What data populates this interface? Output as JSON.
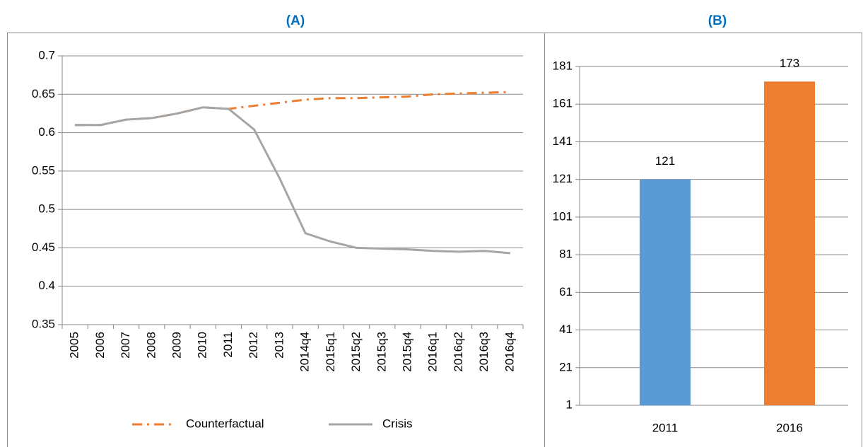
{
  "chart_data": [
    {
      "type": "line",
      "title": "(A)",
      "categories": [
        "2005",
        "2006",
        "2007",
        "2008",
        "2009",
        "2010",
        "2011",
        "2012",
        "2013",
        "2014q4",
        "2015q1",
        "2015q2",
        "2015q3",
        "2015q4",
        "2016q1",
        "2016q2",
        "2016q3",
        "2016q4"
      ],
      "series": [
        {
          "name": "Counterfactual",
          "color": "#ed7d31",
          "style": "dash-dot",
          "values": [
            0.61,
            0.61,
            0.617,
            0.619,
            0.625,
            0.633,
            0.631,
            0.635,
            0.639,
            0.643,
            0.645,
            0.645,
            0.646,
            0.647,
            0.65,
            0.651,
            0.652,
            0.653
          ]
        },
        {
          "name": "Crisis",
          "color": "#a5a5a5",
          "style": "solid",
          "values": [
            0.61,
            0.61,
            0.617,
            0.619,
            0.625,
            0.633,
            0.631,
            0.604,
            0.54,
            0.469,
            0.458,
            0.45,
            0.449,
            0.448,
            0.446,
            0.445,
            0.446,
            0.443
          ]
        }
      ],
      "ylim": [
        0.35,
        0.7
      ],
      "yticks": [
        0.35,
        0.4,
        0.45,
        0.5,
        0.55,
        0.6,
        0.65,
        0.7
      ],
      "grid": true,
      "legend": "bottom"
    },
    {
      "type": "bar",
      "title": "(B)",
      "categories": [
        "2011",
        "2016"
      ],
      "values": [
        121,
        173
      ],
      "colors": [
        "#5b9bd5",
        "#ed7d31"
      ],
      "ylim": [
        1,
        181
      ],
      "yticks": [
        1,
        21,
        41,
        61,
        81,
        101,
        121,
        141,
        161,
        181
      ],
      "grid": true
    }
  ]
}
